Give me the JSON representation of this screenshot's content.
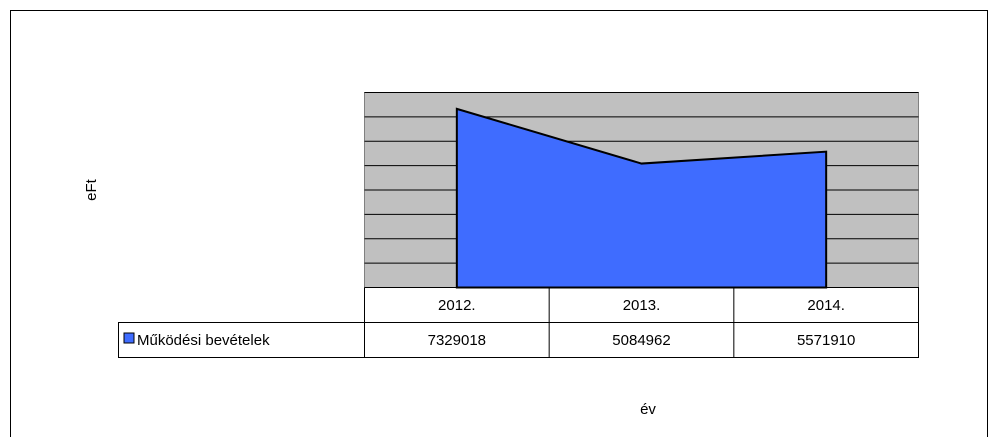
{
  "chart_data": {
    "type": "area",
    "y_label": "eFt",
    "x_label": "év",
    "categories": [
      "2012.",
      "2013.",
      "2014."
    ],
    "series": [
      {
        "name": "Működési bevételek",
        "color": "#3f6cff",
        "values": [
          7329018,
          5084962,
          5571910
        ]
      }
    ],
    "ylim": [
      0,
      8000000
    ],
    "yticks": [
      0,
      1000000,
      2000000,
      3000000,
      4000000,
      5000000,
      6000000,
      7000000,
      8000000
    ],
    "grid": true,
    "plot_background": "#c0c0c0"
  }
}
